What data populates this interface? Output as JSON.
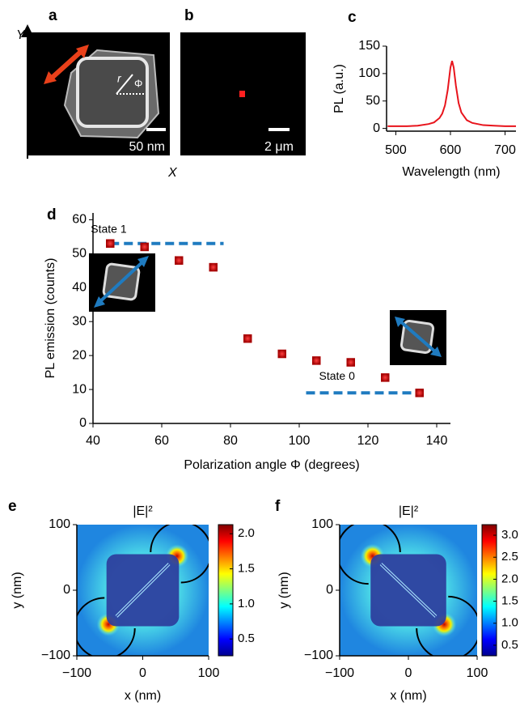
{
  "images": {
    "a": {
      "label": "a",
      "scale_bar": "50 nm",
      "axis_y": "Y",
      "axis_x": "X",
      "radius": "r",
      "angle": "Φ"
    },
    "b": {
      "label": "b",
      "scale_bar": "2 μm"
    }
  },
  "chart_data": [
    {
      "type": "line",
      "panel": "c",
      "xlabel": "Wavelength (nm)",
      "ylabel": "PL (a.u.)",
      "x": [
        485,
        500,
        520,
        540,
        560,
        570,
        580,
        585,
        590,
        595,
        600,
        603,
        606,
        610,
        615,
        620,
        630,
        640,
        660,
        680,
        700,
        720
      ],
      "series": [
        {
          "color": "#e8141c",
          "values": [
            4,
            4,
            4,
            5,
            8,
            11,
            19,
            27,
            42,
            70,
            111,
            123,
            111,
            78,
            46,
            29,
            15,
            10,
            6,
            5,
            4,
            4
          ]
        }
      ],
      "xlim": [
        483,
        720
      ],
      "ylim": [
        -5,
        150
      ],
      "xticks": [
        500,
        600,
        700
      ],
      "yticks": [
        0,
        50,
        100,
        150
      ]
    },
    {
      "type": "scatter",
      "panel": "d",
      "xlabel": "Polarization angle Φ (degrees)",
      "ylabel": "PL emission (counts)",
      "x": [
        45,
        55,
        65,
        75,
        85,
        95,
        105,
        115,
        125,
        135
      ],
      "values": [
        53,
        52,
        48,
        46,
        25,
        20.5,
        18.5,
        18,
        13.5,
        9
      ],
      "color": "#e8141c",
      "xlim": [
        40,
        144
      ],
      "ylim": [
        0,
        62
      ],
      "xticks": [
        40,
        60,
        80,
        100,
        120,
        140
      ],
      "yticks": [
        0,
        10,
        20,
        30,
        40,
        50,
        60
      ],
      "annotations": [
        {
          "text": "State 1",
          "y": 53,
          "x": [
            45,
            78
          ]
        },
        {
          "text": "State 0",
          "y": 9,
          "x": [
            102,
            135
          ]
        }
      ]
    },
    {
      "type": "heatmap",
      "panel": "e",
      "title": "|E|²",
      "xlabel": "x (nm)",
      "ylabel": "y (nm)",
      "xlim": [
        -100,
        100
      ],
      "ylim": [
        -100,
        100
      ],
      "xticks": [
        {
          "value": -100,
          "label": "−100"
        },
        0,
        100
      ],
      "yticks": [
        {
          "value": -100,
          "label": "−100"
        },
        0,
        100
      ],
      "colorbar": {
        "lim": [
          0.26,
          2.13
        ],
        "ticks": [
          0.5,
          {
            "value": 1,
            "label": "1.0"
          },
          1.5,
          {
            "value": 2,
            "label": "2.0"
          }
        ]
      }
    },
    {
      "type": "heatmap",
      "panel": "f",
      "title": "|E|²",
      "xlabel": "x (nm)",
      "ylabel": "y (nm)",
      "xlim": [
        -100,
        100
      ],
      "ylim": [
        -100,
        100
      ],
      "xticks": [
        {
          "value": -100,
          "label": "−100"
        },
        0,
        100
      ],
      "yticks": [
        {
          "value": -100,
          "label": "−100"
        },
        0,
        100
      ],
      "colorbar": {
        "lim": [
          0.26,
          3.24
        ],
        "ticks": [
          0.5,
          {
            "value": 1,
            "label": "1.0"
          },
          1.5,
          {
            "value": 2,
            "label": "2.0"
          },
          2.5,
          {
            "value": 3,
            "label": "3.0"
          }
        ]
      }
    }
  ]
}
